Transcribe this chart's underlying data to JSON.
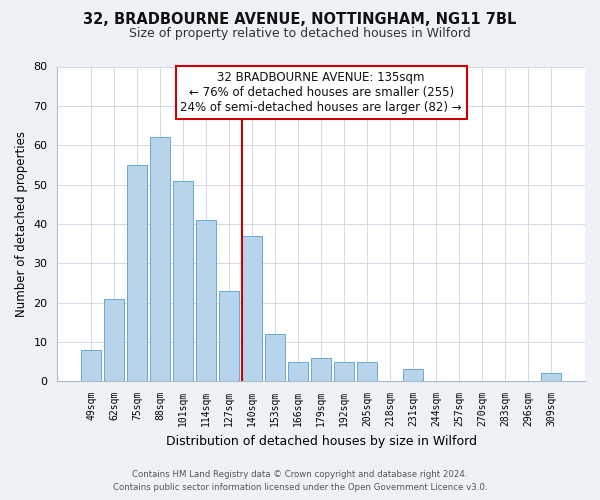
{
  "title_line1": "32, BRADBOURNE AVENUE, NOTTINGHAM, NG11 7BL",
  "title_line2": "Size of property relative to detached houses in Wilford",
  "xlabel": "Distribution of detached houses by size in Wilford",
  "ylabel": "Number of detached properties",
  "categories": [
    "49sqm",
    "62sqm",
    "75sqm",
    "88sqm",
    "101sqm",
    "114sqm",
    "127sqm",
    "140sqm",
    "153sqm",
    "166sqm",
    "179sqm",
    "192sqm",
    "205sqm",
    "218sqm",
    "231sqm",
    "244sqm",
    "257sqm",
    "270sqm",
    "283sqm",
    "296sqm",
    "309sqm"
  ],
  "values": [
    8,
    21,
    55,
    62,
    51,
    41,
    23,
    37,
    12,
    5,
    6,
    5,
    5,
    0,
    3,
    0,
    0,
    0,
    0,
    0,
    2
  ],
  "bar_color": "#b8d4ea",
  "bar_edge_color": "#6aaad4",
  "highlight_bar_index": 7,
  "highlight_bar_color": "#c8dff0",
  "vline_x": 7.5,
  "vline_color": "#cc0000",
  "ylim": [
    0,
    80
  ],
  "yticks": [
    0,
    10,
    20,
    30,
    40,
    50,
    60,
    70,
    80
  ],
  "annotation_line1": "32 BRADBOURNE AVENUE: 135sqm",
  "annotation_line2": "← 76% of detached houses are smaller (255)",
  "annotation_line3": "24% of semi-detached houses are larger (82) →",
  "footer_line1": "Contains HM Land Registry data © Crown copyright and database right 2024.",
  "footer_line2": "Contains public sector information licensed under the Open Government Licence v3.0.",
  "bg_color": "#eef2f7",
  "plot_bg_color": "#ffffff",
  "grid_color": "#c8d4e0"
}
